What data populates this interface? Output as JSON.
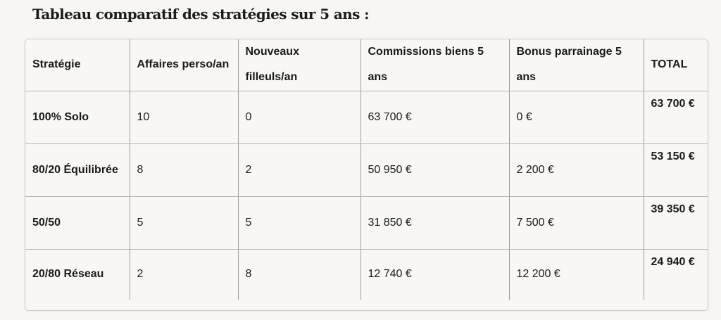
{
  "title": "Tableau comparatif des stratégies sur 5 ans :",
  "table": {
    "headers": [
      "Stratégie",
      "Affaires perso/an",
      "Nouveaux filleuls/an",
      "Commissions biens 5 ans",
      "Bonus parrainage 5 ans",
      "TOTAL"
    ],
    "rows": [
      [
        "100% Solo",
        "10",
        "0",
        "63 700 €",
        "0 €",
        "63 700 €"
      ],
      [
        "80/20 Équilibrée",
        "8",
        "2",
        "50 950 €",
        "2 200 €",
        "53 150 €"
      ],
      [
        "50/50",
        "5",
        "5",
        "31 850 €",
        "7 500 €",
        "39 350 €"
      ],
      [
        "20/80 Réseau",
        "2",
        "8",
        "12 740 €",
        "12 200 €",
        "24 940 €"
      ]
    ]
  }
}
